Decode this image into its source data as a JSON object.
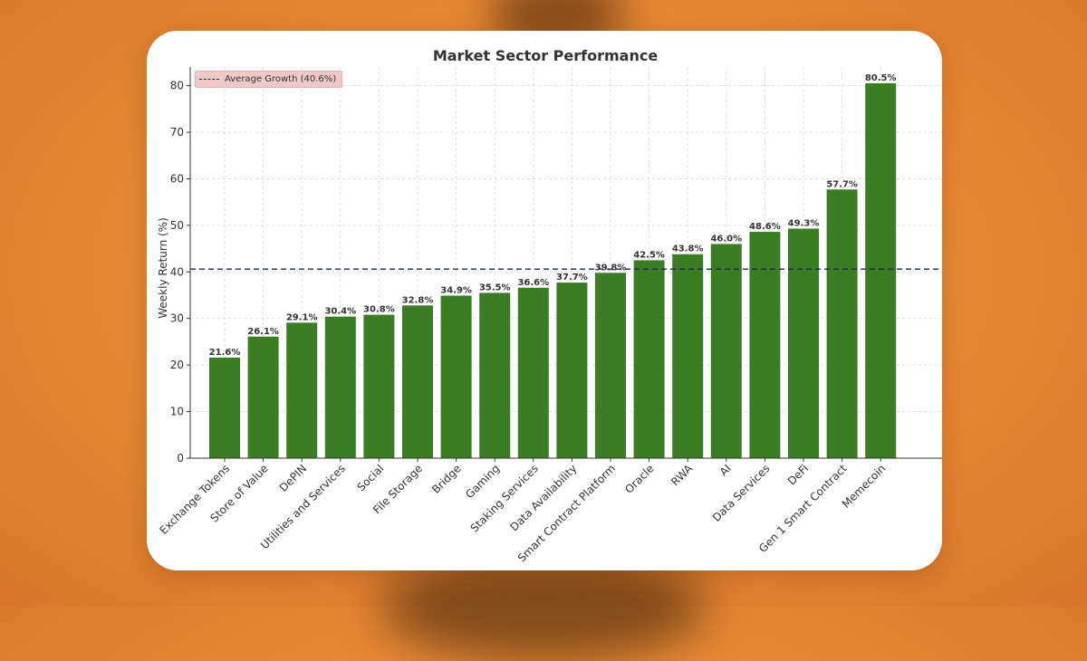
{
  "chart_data": {
    "type": "bar",
    "title": "Market Sector Performance",
    "xlabel": "",
    "ylabel": "Weekly Return (%)",
    "ylim": [
      0,
      84
    ],
    "yticks": [
      0,
      10,
      20,
      30,
      40,
      50,
      60,
      70,
      80
    ],
    "grid": true,
    "bar_color": "#3a7d23",
    "categories": [
      "Exchange Tokens",
      "Store of Value",
      "DePIN",
      "Utilities and Services",
      "Social",
      "File Storage",
      "Bridge",
      "Gaming",
      "Staking Services",
      "Data Availability",
      "Smart Contract Platform",
      "Oracle",
      "RWA",
      "AI",
      "Data Services",
      "DeFi",
      "Gen 1 Smart Contract",
      "Memecoin"
    ],
    "values": [
      21.6,
      26.1,
      29.1,
      30.4,
      30.8,
      32.8,
      34.9,
      35.5,
      36.6,
      37.7,
      39.8,
      42.5,
      43.8,
      46.0,
      48.6,
      49.3,
      57.7,
      80.5
    ],
    "value_labels": [
      "21.6%",
      "26.1%",
      "29.1%",
      "30.4%",
      "30.8%",
      "32.8%",
      "34.9%",
      "35.5%",
      "36.6%",
      "37.7%",
      "39.8%",
      "42.5%",
      "43.8%",
      "46.0%",
      "48.6%",
      "49.3%",
      "57.7%",
      "80.5%"
    ],
    "reference_line": {
      "value": 40.6,
      "label": "Average Growth (40.6%)",
      "color": "#1f2b4a",
      "style": "dashed"
    },
    "legend": {
      "position": "top-left",
      "background": "#f0c8c8"
    }
  }
}
